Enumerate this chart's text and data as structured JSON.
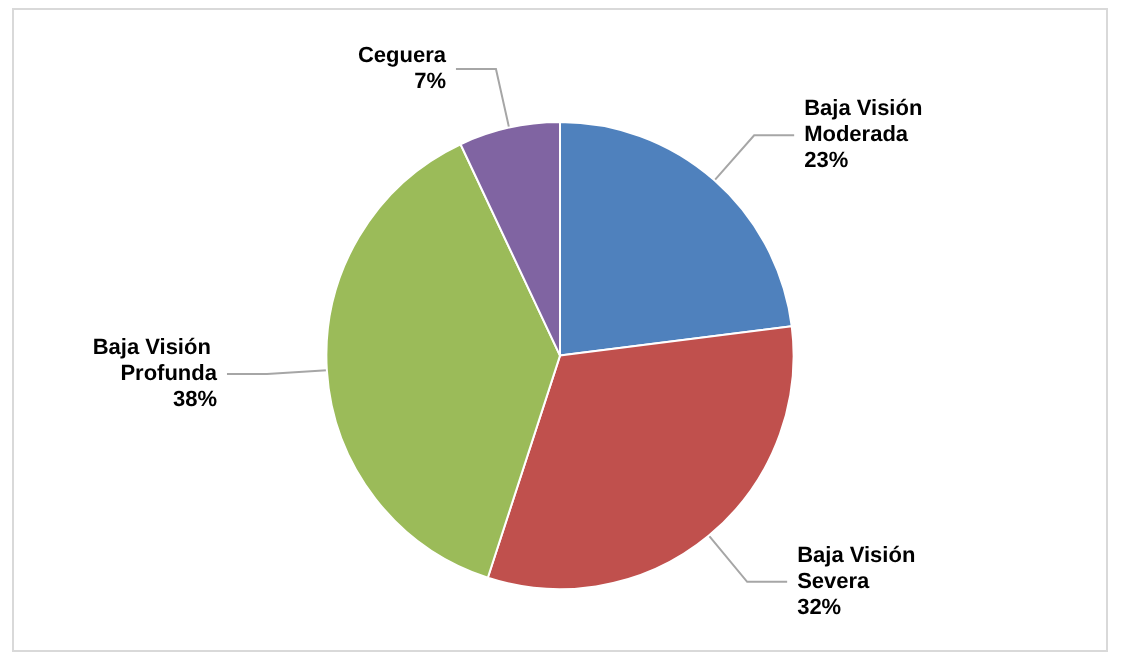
{
  "chart_data": {
    "type": "pie",
    "categories": [
      "Baja Visión Moderada",
      "Baja Visión Severa",
      "Baja Visión Profunda",
      "Ceguera"
    ],
    "values": [
      23,
      32,
      38,
      7
    ],
    "colors": [
      "#4f81bd",
      "#c0504d",
      "#9bbb59",
      "#8064a2"
    ],
    "value_labels": [
      "23%",
      "32%",
      "38%",
      "7%"
    ],
    "legend": false
  }
}
